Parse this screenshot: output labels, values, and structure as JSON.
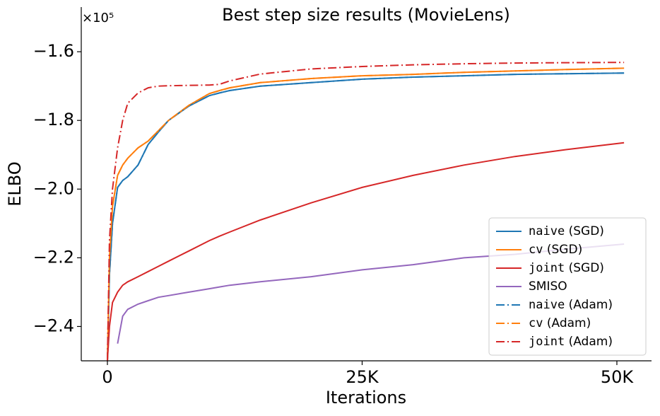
{
  "chart_data": {
    "type": "line",
    "title": "Best step size results (MovieLens)",
    "x_label": "Iterations",
    "y_label": "ELBO",
    "y_offset_label": "×10⁵",
    "x": [
      0,
      200,
      500,
      1000,
      1500,
      2000,
      3000,
      4000,
      5000,
      6000,
      8000,
      10000,
      11000,
      12000,
      15000,
      20000,
      25000,
      30000,
      35000,
      40000,
      45000,
      50700
    ],
    "series": [
      {
        "name": "naive (SGD)",
        "color": "#1f77b4",
        "style": "solid",
        "values": [
          -2.5,
          -2.25,
          -2.1,
          -1.995,
          -1.975,
          -1.964,
          -1.93,
          -1.87,
          -1.834,
          -1.8,
          -1.758,
          -1.728,
          -1.72,
          -1.713,
          -1.7,
          -1.69,
          -1.68,
          -1.674,
          -1.67,
          -1.666,
          -1.664,
          -1.662
        ]
      },
      {
        "name": "cv (SGD)",
        "color": "#ff7f0e",
        "style": "solid",
        "values": [
          -2.5,
          -2.2,
          -2.05,
          -1.96,
          -1.93,
          -1.91,
          -1.88,
          -1.86,
          -1.83,
          -1.8,
          -1.756,
          -1.722,
          -1.713,
          -1.705,
          -1.69,
          -1.678,
          -1.67,
          -1.666,
          -1.66,
          -1.656,
          -1.652,
          -1.648
        ]
      },
      {
        "name": "joint (SGD)",
        "color": "#d62728",
        "style": "solid",
        "values": [
          -2.5,
          -2.4,
          -2.33,
          -2.3,
          -2.28,
          -2.27,
          -2.255,
          -2.24,
          -2.225,
          -2.21,
          -2.18,
          -2.15,
          -2.137,
          -2.125,
          -2.09,
          -2.04,
          -1.995,
          -1.96,
          -1.93,
          -1.905,
          -1.885,
          -1.865
        ]
      },
      {
        "name": "SMISO",
        "color": "#9467bd",
        "style": "solid",
        "values": [
          null,
          null,
          null,
          -2.45,
          -2.37,
          -2.35,
          -2.335,
          -2.325,
          -2.315,
          -2.31,
          -2.3,
          -2.29,
          -2.285,
          -2.28,
          -2.27,
          -2.255,
          -2.235,
          -2.22,
          -2.2,
          -2.19,
          -2.175,
          -2.16
        ]
      },
      {
        "name": "naive (Adam)",
        "color": "#1f77b4",
        "style": "dashdot",
        "values": [
          -2.5,
          -2.25,
          -2.1,
          -1.995,
          -1.975,
          -1.964,
          -1.93,
          -1.87,
          -1.834,
          -1.8,
          -1.758,
          -1.728,
          -1.72,
          -1.713,
          -1.7,
          -1.69,
          -1.68,
          -1.674,
          -1.67,
          -1.666,
          -1.664,
          -1.662
        ]
      },
      {
        "name": "cv (Adam)",
        "color": "#ff7f0e",
        "style": "dashdot",
        "values": [
          -2.5,
          -2.2,
          -2.05,
          -1.96,
          -1.93,
          -1.91,
          -1.88,
          -1.86,
          -1.83,
          -1.8,
          -1.756,
          -1.722,
          -1.713,
          -1.705,
          -1.69,
          -1.678,
          -1.67,
          -1.666,
          -1.66,
          -1.656,
          -1.652,
          -1.648
        ]
      },
      {
        "name": "joint (Adam)",
        "color": "#d62728",
        "style": "dashdot",
        "values": [
          -2.5,
          -2.15,
          -2.0,
          -1.88,
          -1.8,
          -1.75,
          -1.72,
          -1.705,
          -1.7,
          -1.699,
          -1.698,
          -1.697,
          -1.695,
          -1.685,
          -1.665,
          -1.65,
          -1.643,
          -1.638,
          -1.635,
          -1.633,
          -1.632,
          -1.631
        ]
      }
    ],
    "xlim": [
      -2566,
      53400
    ],
    "ylim": [
      -2.5,
      -1.47
    ],
    "xticks": [
      0,
      {
        "value": 25000,
        "label": "25K"
      },
      {
        "value": 50000,
        "label": "50K"
      }
    ],
    "yticks": [
      {
        "value": -2.4,
        "label": "−2.4"
      },
      {
        "value": -2.2,
        "label": "−2.2"
      },
      {
        "value": -2.0,
        "label": "−2.0"
      },
      {
        "value": -1.8,
        "label": "−1.8"
      },
      {
        "value": -1.6,
        "label": "−1.6"
      }
    ],
    "grid": false,
    "legend": "lower right"
  }
}
